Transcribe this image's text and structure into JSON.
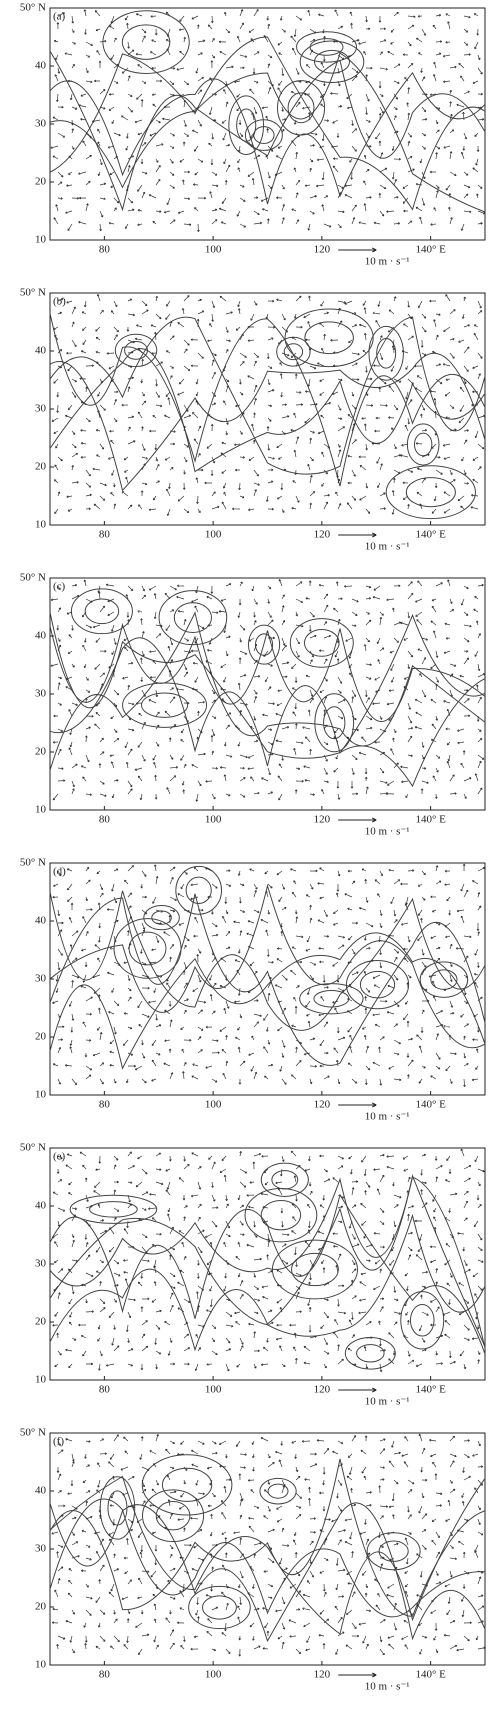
{
  "axes": {
    "xlim": [
      70,
      150
    ],
    "ylim": [
      10,
      50
    ],
    "xticks": [
      80,
      100,
      120,
      {
        "value": 140,
        "label": "140° E"
      }
    ],
    "yticks": [
      {
        "value": 50,
        "label": "50° N"
      },
      40,
      30,
      20,
      10
    ]
  },
  "scale_label": "10 m · s⁻¹",
  "panels": [
    {
      "label": "(a)"
    },
    {
      "label": "(b)"
    },
    {
      "label": "(c)"
    },
    {
      "label": "(d)"
    },
    {
      "label": "(e)"
    },
    {
      "label": "(f)"
    }
  ]
}
